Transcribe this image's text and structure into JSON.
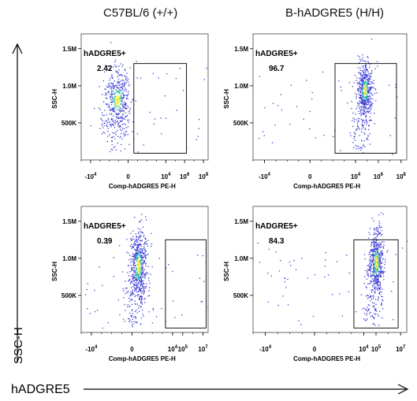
{
  "columns": [
    "C57BL/6 (+/+)",
    "B-hADGRE5 (H/H)"
  ],
  "outer_axes": {
    "y_label": "SSC-H",
    "x_label": "hADGRE5"
  },
  "colors": {
    "density_low": "#3a3ad6",
    "density_mid": "#20c0a0",
    "density_high": "#f0e020",
    "axis": "#000000"
  },
  "chart_data": [
    {
      "type": "scatter",
      "panel": "top-left",
      "gate_label": "hADGRE5+",
      "gate_value": "2.42",
      "xlabel": "Comp-hADGRE5 PE-H",
      "ylabel": "SSC-H",
      "x_ticks": [
        "-10^4",
        "0",
        "10^4",
        "10^6",
        "10^8"
      ],
      "y_ticks": [
        "500K",
        "1.0M",
        "1.5M"
      ],
      "xlim_exp": [
        -5,
        8.5
      ],
      "ylim": [
        0,
        1700000
      ],
      "gate": {
        "x_exp": [
          0.6,
          6.2
        ],
        "y": [
          90000,
          1300000
        ]
      },
      "population": {
        "x_exp_center": -1.2,
        "x_exp_spread": 0.7,
        "y_center": 820000,
        "y_spread": 220000,
        "tail": true
      },
      "events": 520
    },
    {
      "type": "scatter",
      "panel": "top-right",
      "gate_label": "hADGRE5+",
      "gate_value": "96.7",
      "xlabel": "Comp-hADGRE5 PE-H",
      "ylabel": "SSC-H",
      "x_ticks": [
        "-10^4",
        "0",
        "10^4",
        "10^6",
        "10^8"
      ],
      "y_ticks": [
        "500K",
        "1.0M",
        "1.5M"
      ],
      "xlim_exp": [
        -5,
        8.5
      ],
      "ylim": [
        0,
        1700000
      ],
      "gate": {
        "x_exp": [
          2.2,
          7.6
        ],
        "y": [
          90000,
          1300000
        ]
      },
      "population": {
        "x_exp_center": 4.8,
        "x_exp_spread": 0.35,
        "y_center": 950000,
        "y_spread": 200000,
        "tail": true
      },
      "events": 620
    },
    {
      "type": "scatter",
      "panel": "bottom-left",
      "gate_label": "hADGRE5+",
      "gate_value": "0.39",
      "xlabel": "Comp-hADGRE5 PE-H",
      "ylabel": "SSC-H",
      "x_ticks": [
        "-10^4",
        "0",
        "10^4",
        "10^5",
        "10^7"
      ],
      "y_ticks": [
        "500K",
        "1.0M",
        "1.5M"
      ],
      "xlim_exp": [
        -5,
        7.5
      ],
      "ylim": [
        0,
        1700000
      ],
      "gate": {
        "x_exp": [
          3.3,
          7.3
        ],
        "y": [
          60000,
          1250000
        ]
      },
      "population": {
        "x_exp_center": 0.6,
        "x_exp_spread": 0.45,
        "y_center": 900000,
        "y_spread": 260000,
        "tail": true
      },
      "events": 700
    },
    {
      "type": "scatter",
      "panel": "bottom-right",
      "gate_label": "hADGRE5+",
      "gate_value": "84.3",
      "xlabel": "Comp-hADGRE5 PE-H",
      "ylabel": "SSC-H",
      "x_ticks": [
        "-10^4",
        "0",
        "10^4",
        "10^5",
        "10^7"
      ],
      "y_ticks": [
        "500K",
        "1.0M",
        "1.5M"
      ],
      "xlim_exp": [
        -5,
        7.5
      ],
      "ylim": [
        0,
        1700000
      ],
      "gate": {
        "x_exp": [
          3.2,
          6.8
        ],
        "y": [
          60000,
          1250000
        ]
      },
      "population": {
        "x_exp_center": 5.0,
        "x_exp_spread": 0.3,
        "y_center": 950000,
        "y_spread": 230000,
        "tail": true
      },
      "events": 650
    }
  ]
}
